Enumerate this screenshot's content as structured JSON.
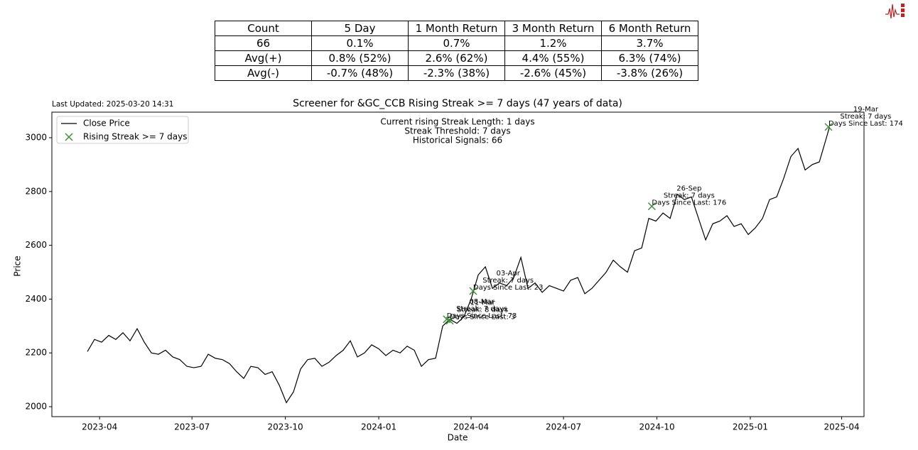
{
  "table": {
    "header": [
      "Count",
      "5 Day",
      "1 Month Return",
      "3 Month Return",
      "6 Month Return"
    ],
    "rows": [
      [
        "66",
        "0.1%",
        "0.7%",
        "1.2%",
        "3.7%"
      ],
      [
        "Avg(+)",
        "0.8% (52%)",
        "2.6% (62%)",
        "4.4% (55%)",
        "6.3% (74%)"
      ],
      [
        "Avg(-)",
        "-0.7% (48%)",
        "-2.3% (38%)",
        "-2.6% (45%)",
        "-3.8% (26%)"
      ]
    ]
  },
  "chart_data": {
    "type": "line",
    "title": "Screener for &GC_CCB Rising Streak >= 7 days (47 years of data)",
    "last_updated": "Last Updated: 2025-03-20 14:31",
    "info_text": [
      "Current rising Streak Length: 1 days",
      "Streak Threshold: 7 days",
      "Historical Signals: 66"
    ],
    "x_label": "Date",
    "y_label": "Price",
    "xlim": [
      "2023-02-13",
      "2025-04-23"
    ],
    "xticks": [
      {
        "value": "2023-04-01",
        "label": "2023-04"
      },
      {
        "value": "2023-07-01",
        "label": "2023-07"
      },
      {
        "value": "2023-10-01",
        "label": "2023-10"
      },
      {
        "value": "2024-01-01",
        "label": "2024-01"
      },
      {
        "value": "2024-04-01",
        "label": "2024-04"
      },
      {
        "value": "2024-07-01",
        "label": "2024-07"
      },
      {
        "value": "2024-10-01",
        "label": "2024-10"
      },
      {
        "value": "2025-01-01",
        "label": "2025-01"
      },
      {
        "value": "2025-04-01",
        "label": "2025-04"
      }
    ],
    "ylim": [
      1963,
      3095
    ],
    "yticks": [
      2000,
      2200,
      2400,
      2600,
      2800,
      3000
    ],
    "grid": false,
    "legend": "upper left",
    "series": [
      {
        "name": "Close Price",
        "color": "#000000",
        "x": [
          "2023-03-20",
          "2023-03-27",
          "2023-04-03",
          "2023-04-10",
          "2023-04-17",
          "2023-04-24",
          "2023-05-01",
          "2023-05-08",
          "2023-05-15",
          "2023-05-22",
          "2023-05-29",
          "2023-06-05",
          "2023-06-12",
          "2023-06-19",
          "2023-06-26",
          "2023-07-03",
          "2023-07-10",
          "2023-07-17",
          "2023-07-24",
          "2023-07-31",
          "2023-08-07",
          "2023-08-14",
          "2023-08-21",
          "2023-08-28",
          "2023-09-04",
          "2023-09-11",
          "2023-09-18",
          "2023-09-25",
          "2023-10-02",
          "2023-10-09",
          "2023-10-16",
          "2023-10-23",
          "2023-10-30",
          "2023-11-06",
          "2023-11-13",
          "2023-11-20",
          "2023-11-27",
          "2023-12-04",
          "2023-12-11",
          "2023-12-18",
          "2023-12-25",
          "2024-01-01",
          "2024-01-08",
          "2024-01-15",
          "2024-01-22",
          "2024-01-29",
          "2024-02-05",
          "2024-02-12",
          "2024-02-19",
          "2024-02-26",
          "2024-03-04",
          "2024-03-11",
          "2024-03-18",
          "2024-03-25",
          "2024-04-01",
          "2024-04-08",
          "2024-04-15",
          "2024-04-22",
          "2024-04-29",
          "2024-05-06",
          "2024-05-13",
          "2024-05-20",
          "2024-05-27",
          "2024-06-03",
          "2024-06-10",
          "2024-06-17",
          "2024-06-24",
          "2024-07-01",
          "2024-07-08",
          "2024-07-15",
          "2024-07-22",
          "2024-07-29",
          "2024-08-05",
          "2024-08-12",
          "2024-08-19",
          "2024-08-26",
          "2024-09-02",
          "2024-09-09",
          "2024-09-16",
          "2024-09-23",
          "2024-09-30",
          "2024-10-07",
          "2024-10-14",
          "2024-10-21",
          "2024-10-28",
          "2024-11-04",
          "2024-11-11",
          "2024-11-18",
          "2024-11-25",
          "2024-12-02",
          "2024-12-09",
          "2024-12-16",
          "2024-12-23",
          "2024-12-30",
          "2025-01-06",
          "2025-01-13",
          "2025-01-20",
          "2025-01-27",
          "2025-02-03",
          "2025-02-10",
          "2025-02-17",
          "2025-02-24",
          "2025-03-03",
          "2025-03-10",
          "2025-03-17",
          "2025-03-20"
        ],
        "values": [
          2205,
          2250,
          2240,
          2265,
          2250,
          2275,
          2245,
          2290,
          2240,
          2200,
          2195,
          2210,
          2185,
          2175,
          2150,
          2145,
          2150,
          2195,
          2180,
          2175,
          2160,
          2130,
          2105,
          2150,
          2145,
          2120,
          2130,
          2080,
          2015,
          2055,
          2140,
          2175,
          2180,
          2150,
          2165,
          2190,
          2210,
          2245,
          2185,
          2200,
          2230,
          2215,
          2190,
          2210,
          2200,
          2225,
          2210,
          2150,
          2175,
          2180,
          2300,
          2325,
          2310,
          2335,
          2400,
          2490,
          2520,
          2440,
          2460,
          2450,
          2480,
          2555,
          2440,
          2460,
          2425,
          2450,
          2440,
          2430,
          2470,
          2480,
          2420,
          2440,
          2470,
          2500,
          2545,
          2520,
          2500,
          2580,
          2590,
          2700,
          2690,
          2720,
          2700,
          2790,
          2770,
          2780,
          2700,
          2620,
          2680,
          2690,
          2710,
          2670,
          2680,
          2640,
          2665,
          2700,
          2770,
          2780,
          2850,
          2930,
          2960,
          2880,
          2900,
          2910,
          3000,
          3040
        ]
      },
      {
        "name": "Rising Streak >= 7 days",
        "color": "#3f8f3f",
        "marker": "x",
        "x": [
          "2024-03-08",
          "2024-03-11",
          "2024-04-03",
          "2024-09-26",
          "2025-03-19"
        ],
        "values": [
          2325,
          2320,
          2430,
          2745,
          3040
        ],
        "annotations": [
          [
            "08-Mar",
            "Streak: 7 days",
            "Days Since Last: 73"
          ],
          [
            "11-Mar",
            "Streak: 8 days",
            "Days Since Last: 3"
          ],
          [
            "03-Apr",
            "Streak: 7 days",
            "Days Since Last: 23"
          ],
          [
            "26-Sep",
            "Streak: 7 days",
            "Days Since Last: 176"
          ],
          [
            "19-Mar",
            "Streak: 7 days",
            "Days Since Last: 174"
          ]
        ]
      }
    ]
  }
}
